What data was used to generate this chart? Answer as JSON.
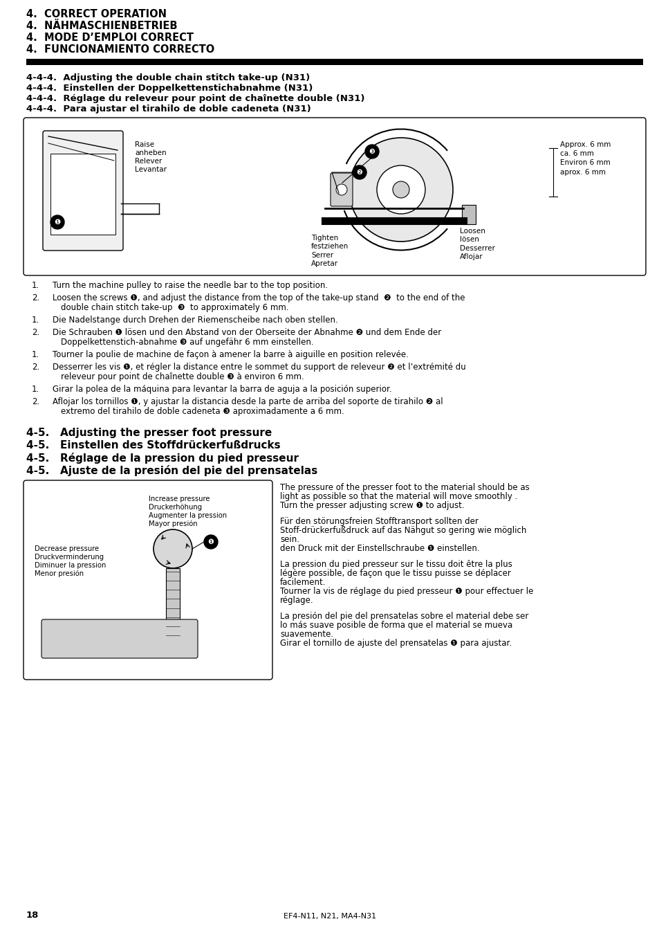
{
  "page_number": "18",
  "footer_model": "EF4-N11, N21, MA4-N31",
  "bg_color": "#ffffff",
  "header_lines": [
    "4.  CORRECT OPERATION",
    "4.  NÄHMASCHIENBETRIEB",
    "4.  MODE D’EMPLOI CORRECT",
    "4.  FUNCIONAMIENTO CORRECTO"
  ],
  "section_444_lines": [
    "4-4-4.  Adjusting the double chain stitch take-up (N31)",
    "4-4-4.  Einstellen der Doppelkettenstichabnahme (N31)",
    "4-4-4.  Réglage du releveur pour point de chaînette double (N31)",
    "4-4-4.  Para ajustar el tirahilo de doble cadeneta (N31)"
  ],
  "body_text_444": [
    [
      "1.",
      "Turn the machine pulley to raise the needle bar to the top position."
    ],
    [
      "2.",
      "Loosen the screws ❶, and adjust the distance from the top of the take-up stand  ❷  to the end of the double chain stitch take-up  ❸  to approximately 6 mm."
    ],
    [
      "1.",
      "Die Nadelstange durch Drehen der Riemenscheibe nach oben stellen."
    ],
    [
      "2.",
      "Die Schrauben ❶ lösen und den Abstand von der Oberseite der Abnahme ❷ und dem Ende der Doppelkettenstich-abnahme ❸ auf ungefähr 6 mm einstellen."
    ],
    [
      "1.",
      "Tourner la poulie de machine de façon à amener la barre à aiguille en position relevée."
    ],
    [
      "2.",
      "Desserrer les vis ❶, et régler la distance entre le sommet du support de releveur ❷ et l’extrémité du releveur pour point de chaînette double ❸ à environ 6 mm."
    ],
    [
      "1.",
      "Girar la polea de la máquina para levantar la barra de aguja a la posición superior."
    ],
    [
      "2.",
      "Aflojar los tornillos ❶, y ajustar la distancia desde la parte de arriba del soporte de tirahilo ❷ al extremo del tirahilo de doble cadeneta ❸ aproximadamente a 6 mm."
    ]
  ],
  "section_45_lines": [
    "4-5.   Adjusting the presser foot pressure",
    "4-5.   Einstellen des Stoffdrückerfußdrucks",
    "4-5.   Réglage de la pression du pied presseur",
    "4-5.   Ajuste de la presión del pie del prensatelas"
  ],
  "body_text_45_para1": "The pressure of the presser foot to the material should be as light as possible so that the material will move smoothly . Turn the presser adjusting screw ❶ to adjust.",
  "body_text_45_para2": "Für den störungsfreien Stofftransport sollten der Stoff-drückerfußdruck auf das Nähgut so gering wie möglich sein.\nden Druck mit der Einstellschraube ❶ einstellen.",
  "body_text_45_para3": "La pression du pied presseur sur le tissu doit être la plus légère possible, de façon que le tissu puisse se déplacer facilement.\nTourner la vis de réglage du pied presseur ❶ pour effectuer le réglage.",
  "body_text_45_para4": "La presión del pie del prensatelas sobre el material debe ser lo más suave posible de forma que el material se mueva suavemente.\nGirar el tornillo de ajuste del prensatelas ❶ para ajustar."
}
